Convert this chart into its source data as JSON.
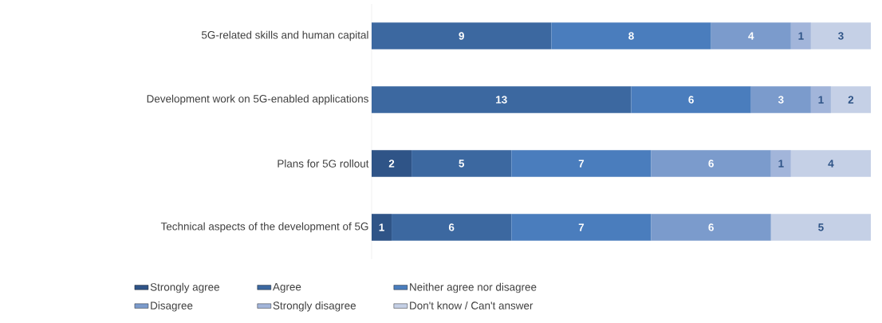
{
  "chart_data": {
    "type": "bar",
    "orientation": "horizontal",
    "stacked": true,
    "data_labels": true,
    "legend": "bottom",
    "tick_labels": "y",
    "xlim": [
      0,
      25
    ],
    "categories": [
      "5G-related skills and human capital",
      "Development work on 5G-enabled applications",
      "Plans for 5G rollout",
      "Technical aspects of the development of 5G"
    ],
    "series": [
      {
        "name": "Strongly agree",
        "color": "#2f5487",
        "values": [
          null,
          null,
          2,
          1
        ]
      },
      {
        "name": "Agree",
        "color": "#3c68a0",
        "values": [
          9,
          13,
          5,
          6
        ]
      },
      {
        "name": "Neither agree nor disagree",
        "color": "#4a7dbd",
        "values": [
          8,
          6,
          7,
          7
        ]
      },
      {
        "name": "Disagree",
        "color": "#7b9bcc",
        "values": [
          4,
          3,
          6,
          6
        ]
      },
      {
        "name": "Strongly disagree",
        "color": "#a2b5da",
        "values": [
          1,
          1,
          1,
          null
        ]
      },
      {
        "name": "Don't know / Can't answer",
        "color": "#c5d0e6",
        "values": [
          3,
          2,
          4,
          5
        ]
      }
    ]
  }
}
